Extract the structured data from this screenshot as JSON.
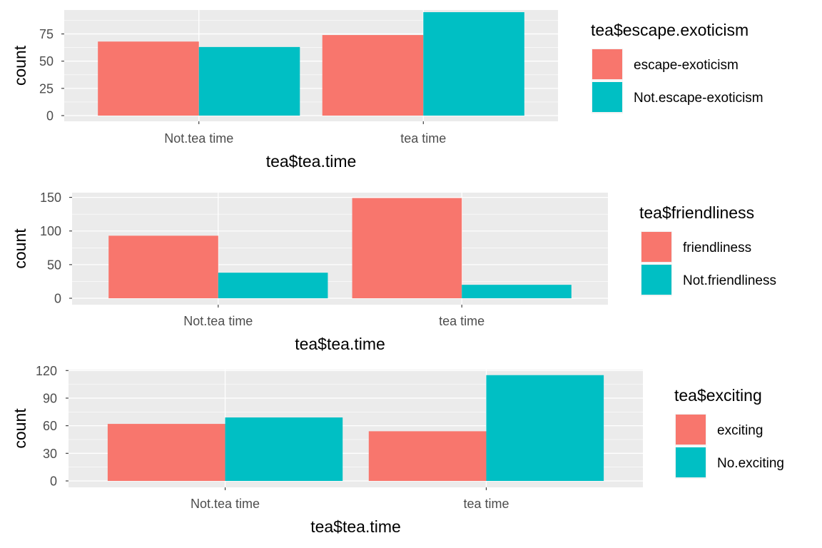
{
  "chart_data": [
    {
      "type": "bar",
      "xlabel": "tea$tea.time",
      "ylabel": "count",
      "categories": [
        "Not.tea time",
        "tea time"
      ],
      "ylim": [
        0,
        97
      ],
      "yticks": [
        0,
        25,
        50,
        75
      ],
      "grid": true,
      "legend_position": "right",
      "legend_title": "tea$escape.exoticism",
      "series": [
        {
          "name": "escape-exoticism",
          "values": [
            68,
            74
          ],
          "color": "#F8766D"
        },
        {
          "name": "Not.escape-exoticism",
          "values": [
            63,
            95
          ],
          "color": "#00BFC4"
        }
      ]
    },
    {
      "type": "bar",
      "xlabel": "tea$tea.time",
      "ylabel": "count",
      "categories": [
        "Not.tea time",
        "tea time"
      ],
      "ylim": [
        0,
        157
      ],
      "yticks": [
        0,
        50,
        100,
        150
      ],
      "grid": true,
      "legend_position": "right",
      "legend_title": "tea$friendliness",
      "series": [
        {
          "name": "friendliness",
          "values": [
            93,
            149
          ],
          "color": "#F8766D"
        },
        {
          "name": "Not.friendliness",
          "values": [
            38,
            20
          ],
          "color": "#00BFC4"
        }
      ]
    },
    {
      "type": "bar",
      "xlabel": "tea$tea.time",
      "ylabel": "count",
      "categories": [
        "Not.tea time",
        "tea time"
      ],
      "ylim": [
        0,
        121
      ],
      "yticks": [
        0,
        30,
        60,
        90,
        120
      ],
      "grid": true,
      "legend_position": "right",
      "legend_title": "tea$exciting",
      "series": [
        {
          "name": "exciting",
          "values": [
            62,
            54
          ],
          "color": "#F8766D"
        },
        {
          "name": "No.exciting",
          "values": [
            69,
            115
          ],
          "color": "#00BFC4"
        }
      ]
    }
  ]
}
